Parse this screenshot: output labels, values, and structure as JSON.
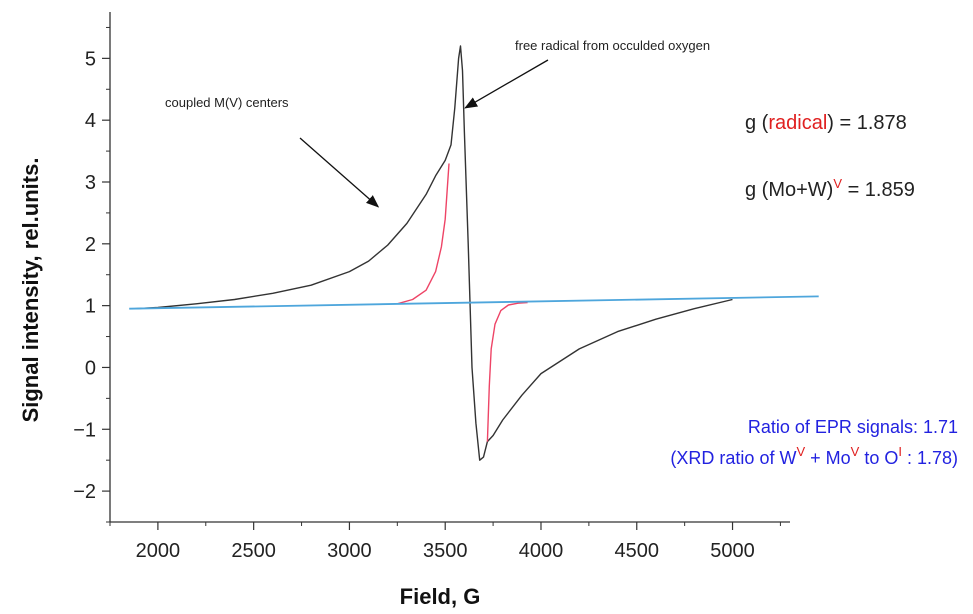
{
  "chart_data": {
    "type": "line",
    "xlabel": "Field, G",
    "ylabel": "Signal intensity, rel.units.",
    "xlim": [
      1750,
      5300
    ],
    "ylim": [
      -2.5,
      5.75
    ],
    "xticks": [
      2000,
      2500,
      3000,
      3500,
      4000,
      4500,
      5000
    ],
    "yticks": [
      -2,
      -1,
      0,
      1,
      2,
      3,
      4,
      5
    ],
    "ytick_labels": [
      "−2",
      "−1",
      "0",
      "1",
      "2",
      "3",
      "4",
      "5"
    ],
    "grid": false,
    "series": [
      {
        "color": "#333333",
        "x": [
          1880,
          2000,
          2200,
          2400,
          2600,
          2800,
          3000,
          3100,
          3200,
          3300,
          3400,
          3450,
          3500,
          3530,
          3550,
          3570,
          3580,
          3590,
          3600,
          3620,
          3640,
          3660,
          3680,
          3700,
          3720,
          3750,
          3800,
          3900,
          4000,
          4200,
          4400,
          4600,
          4800,
          5000
        ],
        "y": [
          0.95,
          0.97,
          1.03,
          1.1,
          1.2,
          1.33,
          1.55,
          1.72,
          1.98,
          2.33,
          2.8,
          3.1,
          3.35,
          3.6,
          4.2,
          5.0,
          5.2,
          4.8,
          3.8,
          2.0,
          0.0,
          -0.9,
          -1.5,
          -1.45,
          -1.2,
          -1.1,
          -0.85,
          -0.45,
          -0.1,
          0.3,
          0.58,
          0.78,
          0.95,
          1.1
        ]
      },
      {
        "color": "#ee4466",
        "x": [
          3250,
          3330,
          3400,
          3450,
          3480,
          3500,
          3510,
          3520
        ],
        "y": [
          1.03,
          1.1,
          1.25,
          1.55,
          1.95,
          2.4,
          2.85,
          3.3
        ]
      },
      {
        "color": "#ee4466",
        "x": [
          3720,
          3730,
          3740,
          3760,
          3790,
          3830,
          3880,
          3930
        ],
        "y": [
          -1.2,
          -0.3,
          0.3,
          0.7,
          0.92,
          1.01,
          1.04,
          1.05
        ]
      },
      {
        "color": "#4ea6dc",
        "x": [
          1850,
          5450
        ],
        "y": [
          0.95,
          1.15
        ]
      }
    ],
    "annotations": [
      {
        "text": "coupled M(V) centers",
        "arrow_to": [
          3150,
          2.6
        ]
      },
      {
        "text": "free radical from occulded oxygen",
        "arrow_to": [
          3605,
          4.2
        ]
      }
    ]
  },
  "text": {
    "annotation_coupled": "coupled M(V) centers",
    "annotation_radical": "free radical from occulded oxygen",
    "g_radical_prefix": "g (",
    "g_radical_word": "radical",
    "g_radical_suffix": ")   = 1.878",
    "g_mow_prefix": "g (Mo+W)",
    "g_mow_sup": "V",
    "g_mow_suffix": " = 1.859",
    "ratio_line": "Ratio of EPR signals:  1.71",
    "xrd_part1": "(XRD ratio of W",
    "xrd_sup1": "V",
    "xrd_part2": " + Mo",
    "xrd_sup2": "V",
    "xrd_part3": " to O",
    "xrd_sup3": "I",
    "xrd_part4": " :  1.78)"
  }
}
